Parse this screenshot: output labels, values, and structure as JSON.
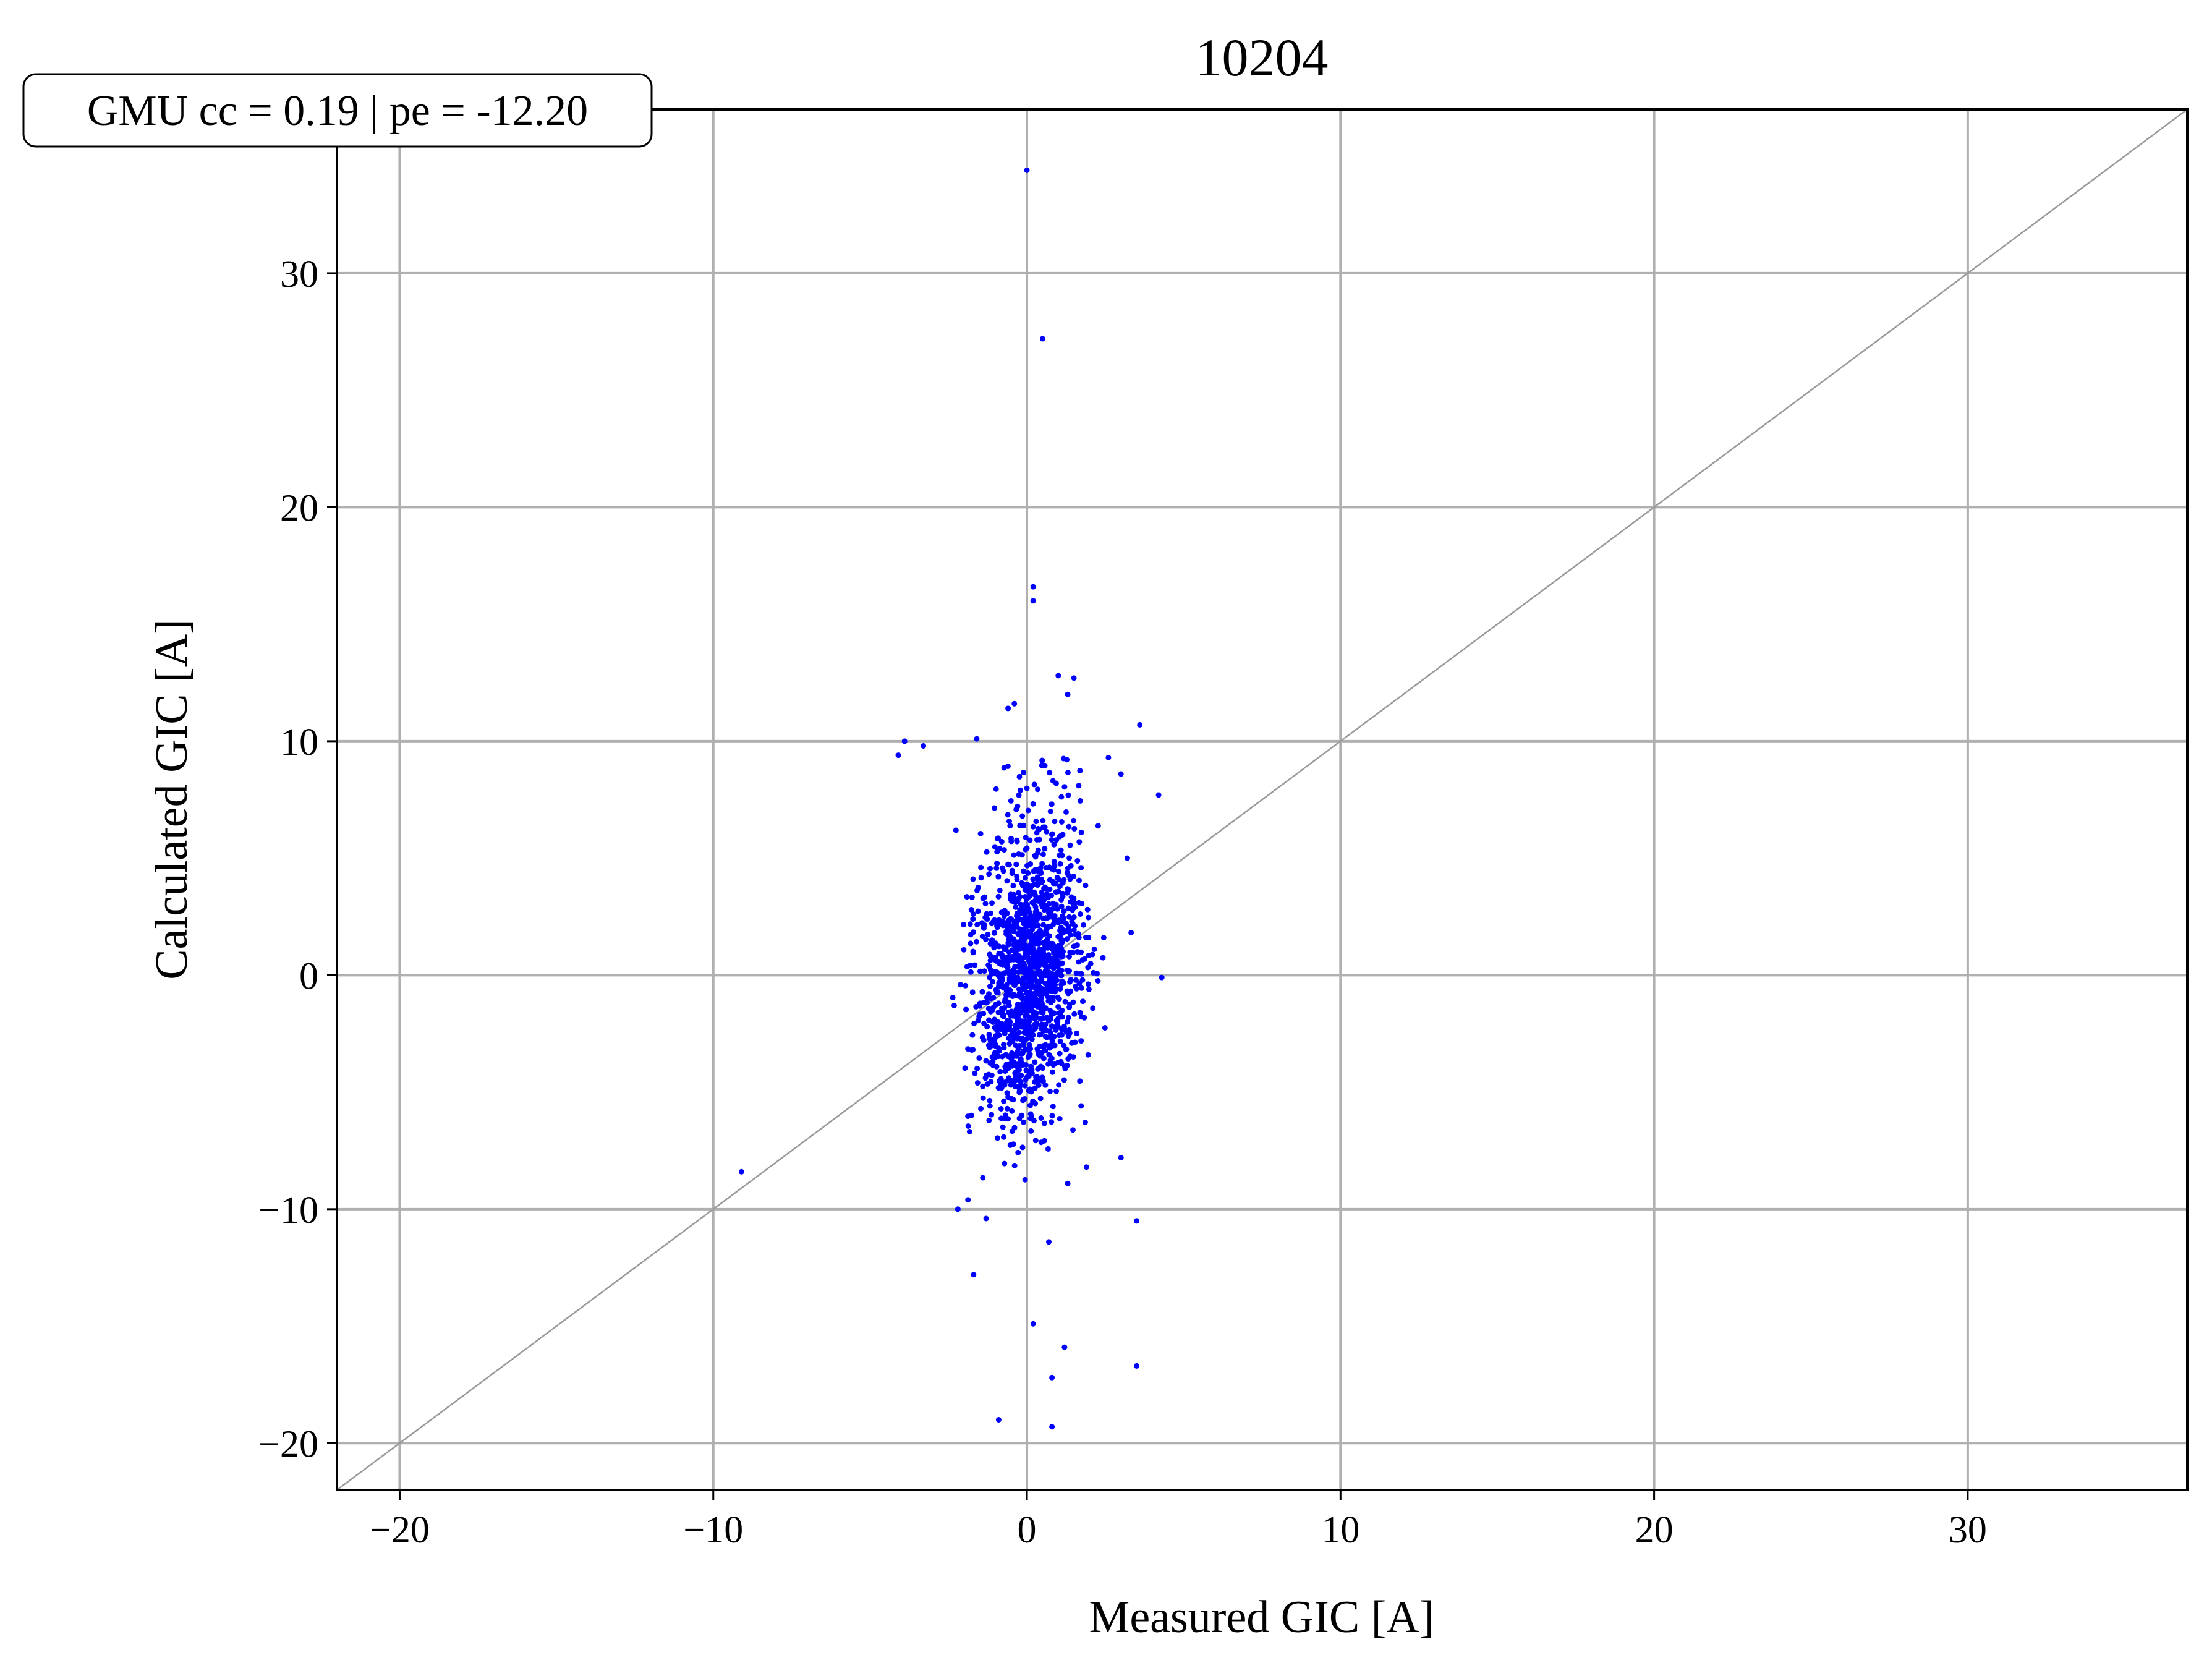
{
  "chart_data": {
    "type": "scatter",
    "title": "10204",
    "xlabel": "Measured GIC [A]",
    "ylabel": "Calculated GIC [A]",
    "xlim": [
      -22,
      37
    ],
    "ylim": [
      -22,
      37
    ],
    "xticks": [
      -20,
      -10,
      0,
      10,
      20,
      30
    ],
    "yticks": [
      -20,
      -10,
      0,
      10,
      20,
      30
    ],
    "xtick_labels": [
      "−20",
      "−10",
      "0",
      "10",
      "20",
      "30"
    ],
    "ytick_labels": [
      "−20",
      "−10",
      "0",
      "10",
      "20",
      "30"
    ],
    "grid": true,
    "reference_line": "y = x",
    "annotation": "GMU cc = 0.19 | pe = -12.20",
    "annotation_position": "top-left",
    "colors": {
      "points": "#0000ff",
      "grid": "#b0b0b0",
      "reference_line": "#999999"
    },
    "outlier_points": {
      "x": [
        0.0,
        0.5,
        0.2,
        0.2,
        -9.1,
        0.2,
        0.8,
        1.2,
        3.5,
        -0.9,
        0.8,
        4.3,
        3.5,
        -4.1,
        -3.9,
        -3.3,
        -1.6,
        1.5,
        1.0,
        1.3,
        3.6,
        2.6,
        3.0,
        3.2,
        4.2,
        -1.7,
        -2.2,
        0.7,
        1.3,
        3.0,
        -0.6,
        -0.4,
        -1.3,
        1.9
      ],
      "y": [
        34.4,
        27.2,
        16.6,
        16.0,
        -8.4,
        -14.9,
        -17.2,
        -15.9,
        -16.7,
        -19.0,
        -19.3,
        -0.1,
        -10.5,
        9.4,
        10.0,
        9.8,
        10.1,
        12.7,
        12.8,
        12.0,
        10.7,
        9.3,
        8.6,
        5.0,
        7.7,
        -12.8,
        -10.0,
        -11.4,
        -8.9,
        -7.8,
        11.4,
        11.6,
        -10.4,
        -8.2
      ]
    },
    "cluster": {
      "count": 1500,
      "center": [
        0.05,
        0.2
      ],
      "sd_x": 0.85,
      "sd_y": 3.1,
      "correlation": 0.19
    }
  }
}
